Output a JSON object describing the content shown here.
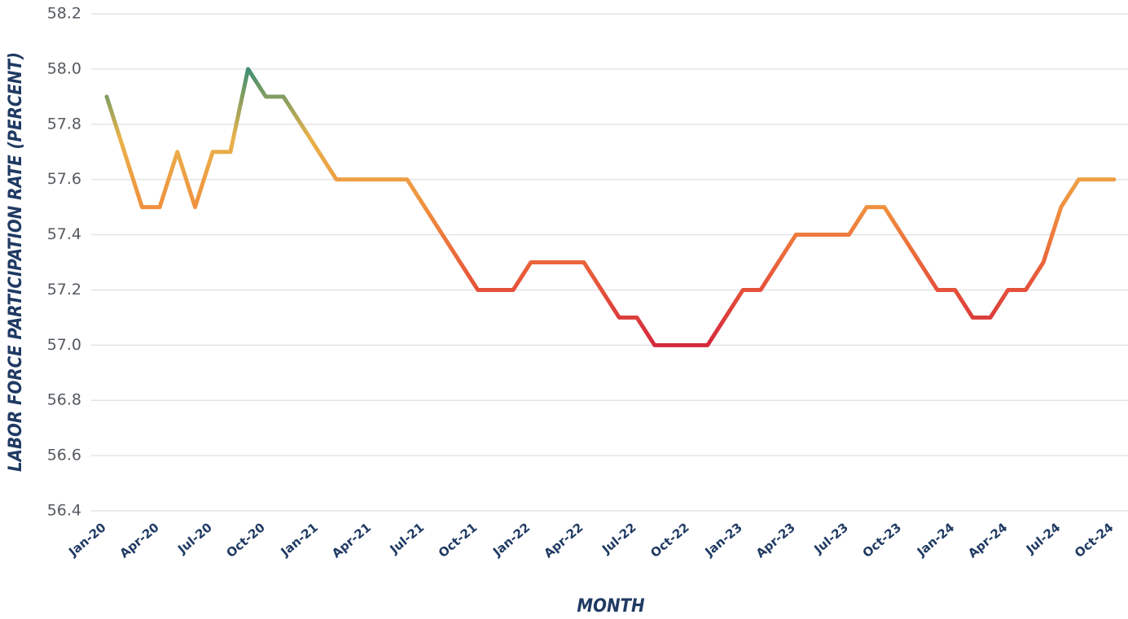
{
  "chart_data": {
    "type": "line",
    "x_label": "MONTH",
    "y_label": "LABOR FORCE PARTICIPATION RATE (PERCENT)",
    "categories": [
      "Jan-20",
      null,
      null,
      "Apr-20",
      null,
      null,
      "Jul-20",
      null,
      null,
      "Oct-20",
      null,
      null,
      "Jan-21",
      null,
      null,
      "Apr-21",
      null,
      null,
      "Jul-21",
      null,
      null,
      "Oct-21",
      null,
      null,
      "Jan-22",
      null,
      null,
      "Apr-22",
      null,
      null,
      "Jul-22",
      null,
      null,
      "Oct-22",
      null,
      null,
      "Jan-23",
      null,
      null,
      "Apr-23",
      null,
      null,
      "Jul-23",
      null,
      null,
      "Oct-23",
      null,
      null,
      "Jan-24",
      null,
      null,
      "Apr-24",
      null,
      null,
      "Jul-24",
      null,
      null,
      "Oct-24"
    ],
    "values": [
      57.9,
      57.7,
      57.5,
      57.5,
      57.7,
      57.5,
      57.7,
      57.7,
      58.0,
      57.9,
      57.9,
      57.8,
      57.7,
      57.6,
      57.6,
      57.6,
      57.6,
      57.6,
      57.5,
      57.4,
      57.3,
      57.2,
      57.2,
      57.2,
      57.3,
      57.3,
      57.3,
      57.3,
      57.2,
      57.1,
      57.1,
      57.0,
      57.0,
      57.0,
      57.0,
      57.1,
      57.2,
      57.2,
      57.3,
      57.4,
      57.4,
      57.4,
      57.4,
      57.5,
      57.5,
      57.4,
      57.3,
      57.2,
      57.2,
      57.1,
      57.1,
      57.2,
      57.2,
      57.3,
      57.5,
      57.6,
      57.6,
      57.6
    ],
    "colors": [
      "#d42a3c",
      "#e85a3a",
      "#f0913f",
      "#e9b24a",
      "#3e8f70"
    ],
    "ylim": [
      56.4,
      58.2
    ],
    "yticks": [
      56.4,
      56.6,
      56.8,
      {
        "value": 57,
        "label": "57.0"
      },
      57.2,
      57.4,
      57.6,
      57.8,
      {
        "value": 58,
        "label": "58.0"
      },
      58.2
    ],
    "grid": true
  }
}
